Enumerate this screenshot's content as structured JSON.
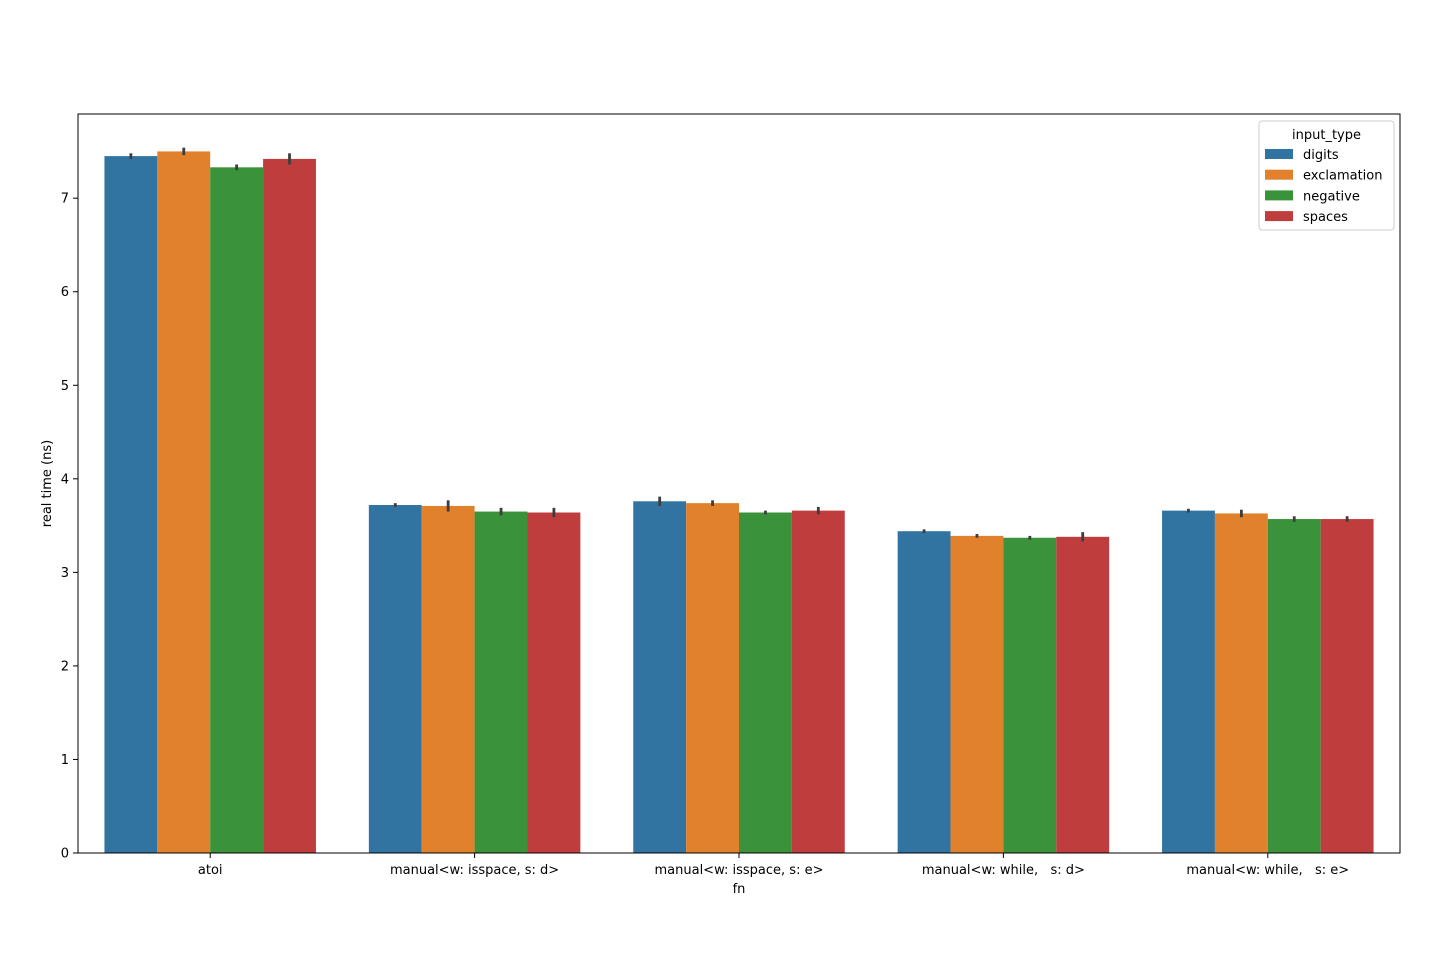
{
  "chart_data": {
    "type": "bar",
    "title": "",
    "xlabel": "fn",
    "ylabel": "real time (ns)",
    "ylim": [
      0,
      7.9
    ],
    "yticks": [
      "0",
      "1",
      "2",
      "3",
      "4",
      "5",
      "6",
      "7"
    ],
    "categories": [
      "atoi",
      "manual<w: isspace, s: d>",
      "manual<w: isspace, s: e>",
      "manual<w: while,   s: d>",
      "manual<w: while,   s: e>"
    ],
    "legend": {
      "title": "input_type",
      "placement": "top-right"
    },
    "series": [
      {
        "name": "digits",
        "color": "#3274a1",
        "values": [
          7.45,
          3.72,
          3.76,
          3.44,
          3.66
        ],
        "errors": [
          0.03,
          0.02,
          0.05,
          0.02,
          0.02
        ]
      },
      {
        "name": "exclamation",
        "color": "#e1812c",
        "values": [
          7.5,
          3.71,
          3.74,
          3.39,
          3.63
        ],
        "errors": [
          0.04,
          0.06,
          0.03,
          0.02,
          0.04
        ]
      },
      {
        "name": "negative",
        "color": "#3a923a",
        "values": [
          7.33,
          3.65,
          3.64,
          3.37,
          3.57
        ],
        "errors": [
          0.03,
          0.04,
          0.02,
          0.02,
          0.03
        ]
      },
      {
        "name": "spaces",
        "color": "#c03d3e",
        "values": [
          7.42,
          3.64,
          3.66,
          3.38,
          3.57
        ],
        "errors": [
          0.06,
          0.05,
          0.04,
          0.05,
          0.03
        ]
      }
    ]
  }
}
